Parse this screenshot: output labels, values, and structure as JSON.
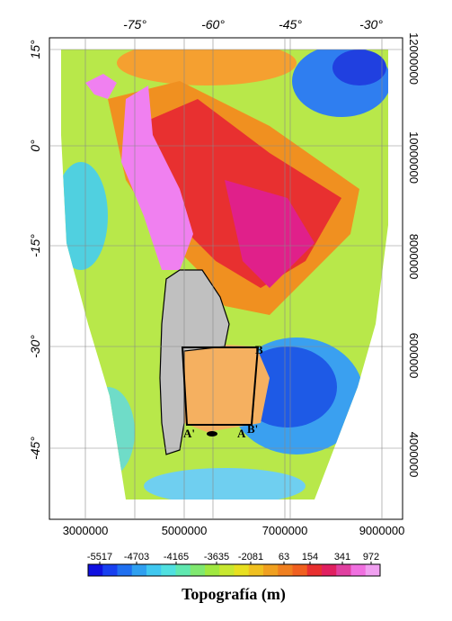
{
  "map": {
    "top_labels": [
      "-75°",
      "-60°",
      "-45°",
      "-30°"
    ],
    "left_labels": [
      "15°",
      "0°",
      "-15°",
      "-30°",
      "-45°"
    ],
    "right_labels": [
      "12000000",
      "10000000",
      "8000000",
      "6000000",
      "4000000"
    ],
    "bottom_labels": [
      "3000000",
      "5000000",
      "7000000",
      "9000000"
    ],
    "profile_labels": [
      "A'",
      "A",
      "B",
      "B'"
    ]
  },
  "colorbar": {
    "labels": [
      "-5517",
      "-4703",
      "-4165",
      "-3635",
      "-2081",
      "63",
      "154",
      "341",
      "972"
    ],
    "title": "Topografía (m)"
  }
}
